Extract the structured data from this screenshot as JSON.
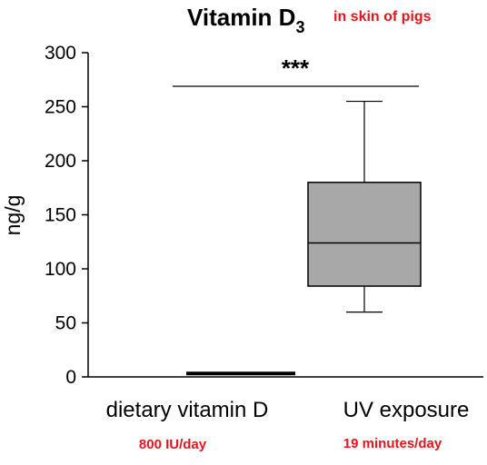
{
  "chart_data": {
    "type": "box",
    "title": "Vitamin D",
    "title_subscript": "3",
    "subtitle": "in skin of pigs",
    "ylabel": "ng/g",
    "xlabel": "",
    "ylim": [
      0,
      300
    ],
    "yticks": [
      "0",
      "50",
      "100",
      "150",
      "200",
      "250",
      "300"
    ],
    "grid": false,
    "categories": [
      "dietary vitamin D",
      "UV exposure"
    ],
    "category_notes": [
      "800 IU/day",
      "19 minutes/day"
    ],
    "boxes": [
      {
        "category": "dietary vitamin D",
        "whisker_low": 2,
        "q1": 2,
        "median": 3,
        "q3": 4,
        "whisker_high": 4
      },
      {
        "category": "UV exposure",
        "whisker_low": 60,
        "q1": 84,
        "median": 124,
        "q3": 180,
        "whisker_high": 255
      }
    ],
    "significance": {
      "label": "***",
      "between": [
        "dietary vitamin D",
        "UV exposure"
      ]
    },
    "colors": {
      "box_fill": "#a8a8a8",
      "accent_text": "#e8141c",
      "line": "#000000"
    }
  }
}
